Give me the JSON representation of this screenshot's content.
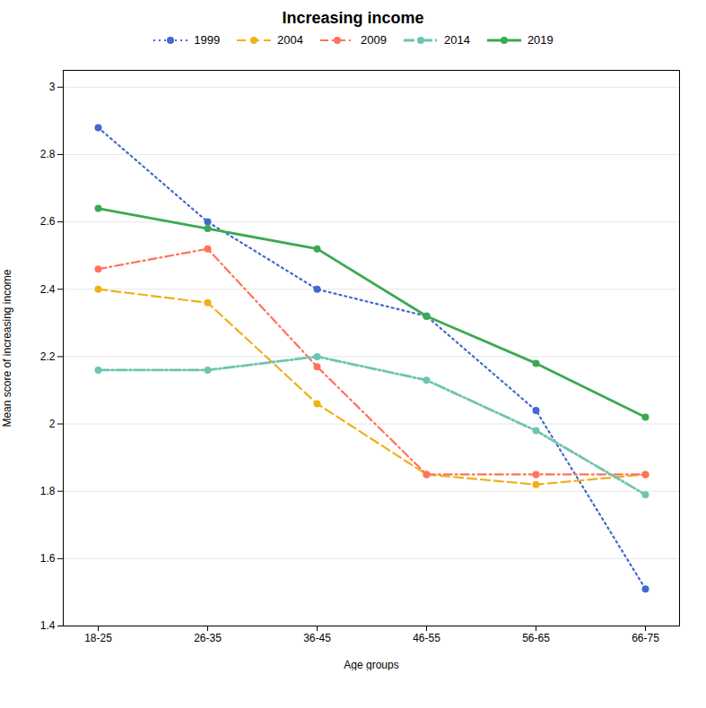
{
  "chart_data": {
    "type": "line",
    "title": "Increasing income",
    "xlabel": "Age groups",
    "ylabel": "Mean score of increasing income",
    "categories": [
      "18-25",
      "26-35",
      "36-45",
      "46-55",
      "56-65",
      "66-75"
    ],
    "ylim": [
      1.4,
      3.05
    ],
    "yticks": [
      1.4,
      1.6,
      1.8,
      2,
      2.2,
      2.4,
      2.6,
      2.8,
      3
    ],
    "grid": true,
    "legend": "top",
    "marker": "circle",
    "series": [
      {
        "name": "1999",
        "values": [
          2.88,
          2.6,
          2.4,
          2.32,
          2.04,
          1.51
        ],
        "line_style": "dotted"
      },
      {
        "name": "2004",
        "values": [
          2.4,
          2.36,
          2.06,
          1.85,
          1.82,
          1.85
        ],
        "line_style": "dashed"
      },
      {
        "name": "2009",
        "values": [
          2.46,
          2.52,
          2.17,
          1.85,
          1.85,
          1.85
        ],
        "line_style": "dashdot"
      },
      {
        "name": "2014",
        "values": [
          2.16,
          2.16,
          2.2,
          2.13,
          1.98,
          1.79
        ],
        "line_style": "longdashdot"
      },
      {
        "name": "2019",
        "values": [
          2.64,
          2.58,
          2.52,
          2.32,
          2.18,
          2.02
        ],
        "line_style": "solid"
      }
    ]
  }
}
